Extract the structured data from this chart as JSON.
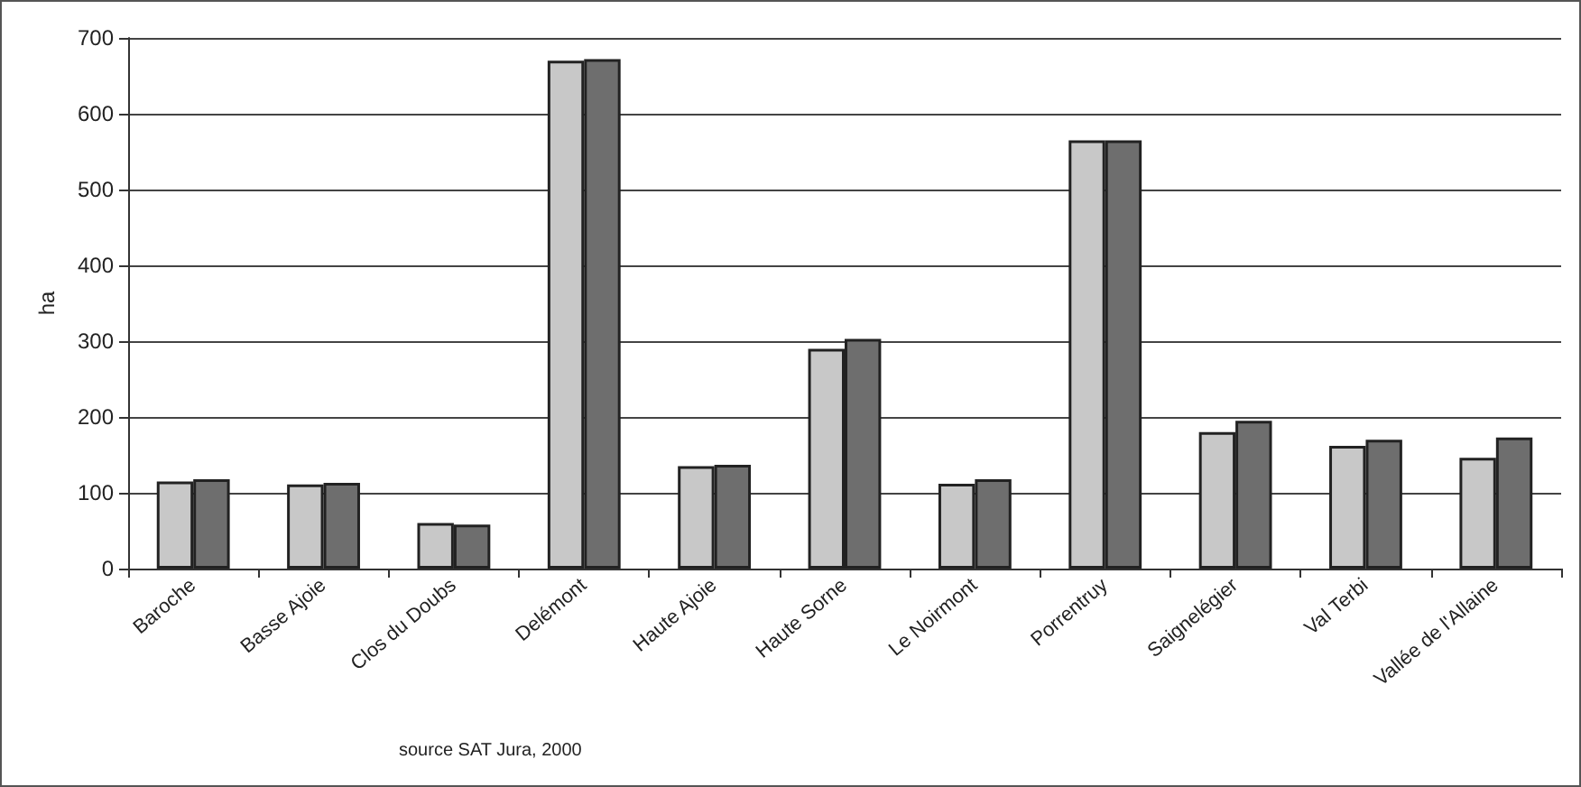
{
  "chart_data": {
    "type": "bar",
    "ylabel": "ha",
    "categories": [
      "Baroche",
      "Basse Ajoie",
      "Clos du Doubs",
      "Delémont",
      "Haute Ajoie",
      "Haute Sorne",
      "Le Noirmont",
      "Porrentruy",
      "Saignelégier",
      "Val Terbi",
      "Vallée de l'Allaine"
    ],
    "series": [
      {
        "color": "#c8c8c8",
        "values": [
          115,
          111,
          60,
          670,
          135,
          290,
          112,
          565,
          180,
          162,
          146
        ]
      },
      {
        "color": "#6e6e6e",
        "values": [
          118,
          113,
          58,
          672,
          137,
          303,
          118,
          565,
          195,
          170,
          173
        ]
      }
    ],
    "ylim": [
      0,
      700
    ],
    "yticks": [
      0,
      100,
      200,
      300,
      400,
      500,
      600,
      700
    ],
    "grid": "y",
    "annotations": [
      "source SAT Jura, 2000"
    ]
  }
}
